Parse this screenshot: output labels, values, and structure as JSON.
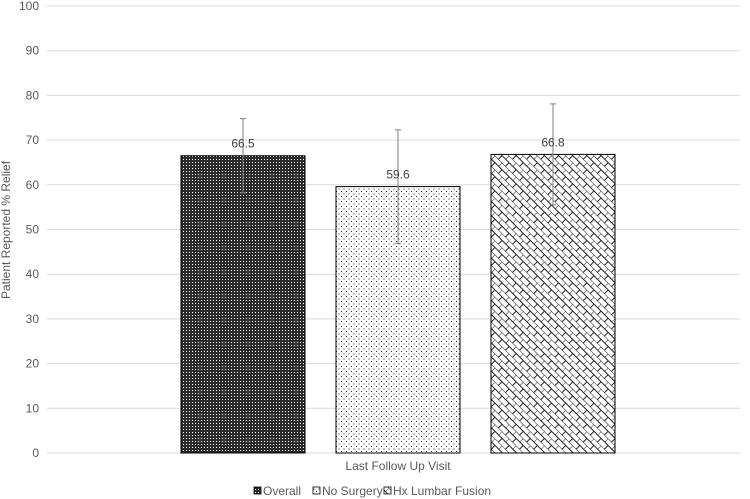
{
  "chart_data": {
    "type": "bar",
    "categories": [
      "Last Follow Up Visit"
    ],
    "series": [
      {
        "name": "Overall",
        "values": [
          66.5
        ],
        "error": [
          8.3
        ],
        "label": "66.5",
        "pattern": "dense-dots"
      },
      {
        "name": "No Surgery",
        "values": [
          59.6
        ],
        "error": [
          12.7
        ],
        "label": "59.6",
        "pattern": "sparse-dots"
      },
      {
        "name": "Hx Lumbar Fusion",
        "values": [
          66.8
        ],
        "error": [
          11.3
        ],
        "label": "66.8",
        "pattern": "brick"
      }
    ],
    "xlabel": "Last Follow Up Visit",
    "ylabel": "Patient Reported % Relief",
    "ylim": [
      0,
      100
    ],
    "yticks": [
      "0",
      "10",
      "20",
      "30",
      "40",
      "50",
      "60",
      "70",
      "80",
      "90",
      "100"
    ],
    "grid": true,
    "legend_position": "bottom",
    "colors": {
      "grid": "#d9d9d9",
      "bar_stroke": "#000000",
      "text": "#595959",
      "error": "#7f7f7f"
    }
  }
}
